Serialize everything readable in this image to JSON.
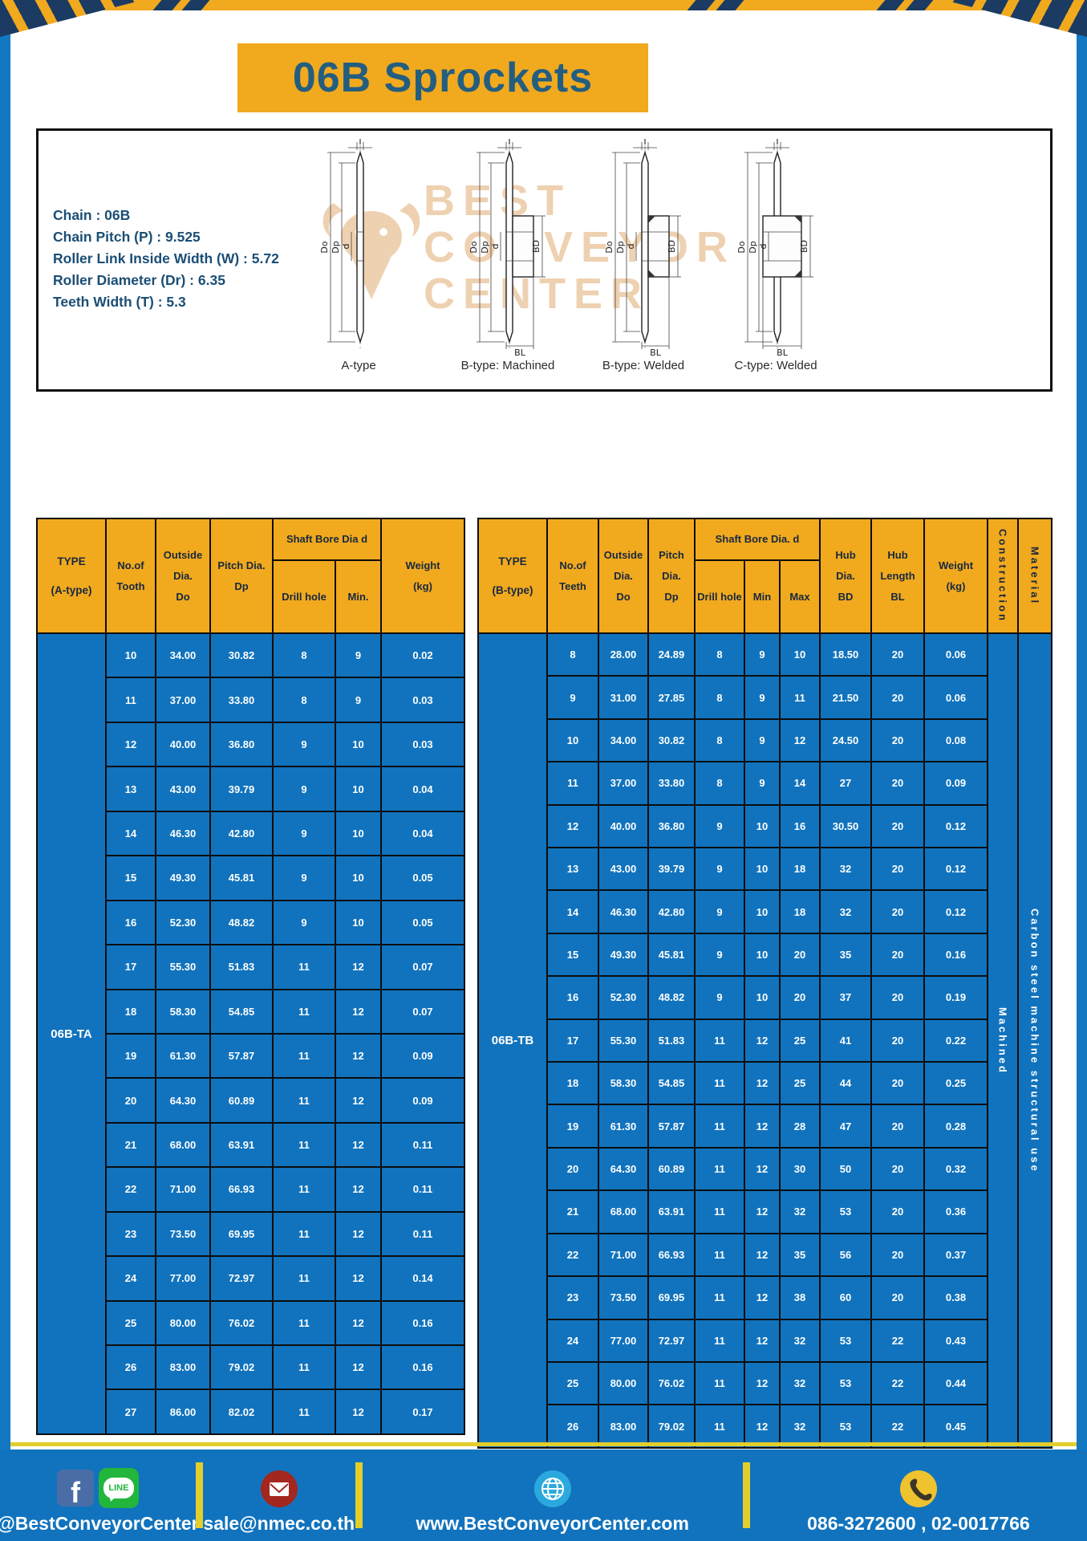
{
  "title": "06B Sprockets",
  "specs": [
    "Chain : 06B",
    "Chain Pitch (P) : 9.525",
    "Roller Link Inside Width (W) : 5.72",
    "Roller Diameter (Dr) : 6.35",
    "Teeth Width (T) : 5.3"
  ],
  "watermark_lines": [
    "BEST",
    "CONVEYOR",
    "CENTER"
  ],
  "diagram": {
    "types": [
      "A-type",
      "B-type: Machined",
      "B-type: Welded",
      "C-type: Welded"
    ],
    "dims": {
      "t": "T",
      "do": "Do",
      "dp": "Dp",
      "d": "d",
      "bd": "BD",
      "bl": "BL"
    }
  },
  "tableA": {
    "type_header": "TYPE\n(A-type)",
    "type_value": "06B-TA",
    "headers": {
      "tooth": "No.of\nTooth",
      "outside": "Outside\nDia.\nDo",
      "pitch": "Pitch Dia.\nDp",
      "shaft_group": "Shaft Bore Dia d",
      "drill": "Drill hole",
      "min": "Min.",
      "weight": "Weight\n(kg)"
    },
    "rows": [
      [
        "10",
        "34.00",
        "30.82",
        "8",
        "9",
        "0.02"
      ],
      [
        "11",
        "37.00",
        "33.80",
        "8",
        "9",
        "0.03"
      ],
      [
        "12",
        "40.00",
        "36.80",
        "9",
        "10",
        "0.03"
      ],
      [
        "13",
        "43.00",
        "39.79",
        "9",
        "10",
        "0.04"
      ],
      [
        "14",
        "46.30",
        "42.80",
        "9",
        "10",
        "0.04"
      ],
      [
        "15",
        "49.30",
        "45.81",
        "9",
        "10",
        "0.05"
      ],
      [
        "16",
        "52.30",
        "48.82",
        "9",
        "10",
        "0.05"
      ],
      [
        "17",
        "55.30",
        "51.83",
        "11",
        "12",
        "0.07"
      ],
      [
        "18",
        "58.30",
        "54.85",
        "11",
        "12",
        "0.07"
      ],
      [
        "19",
        "61.30",
        "57.87",
        "11",
        "12",
        "0.09"
      ],
      [
        "20",
        "64.30",
        "60.89",
        "11",
        "12",
        "0.09"
      ],
      [
        "21",
        "68.00",
        "63.91",
        "11",
        "12",
        "0.11"
      ],
      [
        "22",
        "71.00",
        "66.93",
        "11",
        "12",
        "0.11"
      ],
      [
        "23",
        "73.50",
        "69.95",
        "11",
        "12",
        "0.11"
      ],
      [
        "24",
        "77.00",
        "72.97",
        "11",
        "12",
        "0.14"
      ],
      [
        "25",
        "80.00",
        "76.02",
        "11",
        "12",
        "0.16"
      ],
      [
        "26",
        "83.00",
        "79.02",
        "11",
        "12",
        "0.16"
      ],
      [
        "27",
        "86.00",
        "82.02",
        "11",
        "12",
        "0.17"
      ]
    ]
  },
  "tableB": {
    "type_header": "TYPE\n(B-type)",
    "type_value": "06B-TB",
    "headers": {
      "teeth": "No.of\nTeeth",
      "outside": "Outside\nDia.\nDo",
      "pitch": "Pitch\nDia.\nDp",
      "shaft_group": "Shaft Bore Dia. d",
      "drill": "Drill hole",
      "min": "Min",
      "max": "Max",
      "hub_dia": "Hub\nDia.\nBD",
      "hub_len": "Hub\nLength\nBL",
      "weight": "Weight\n(kg)",
      "construction": "Construction",
      "material": "Material"
    },
    "construction_value": "Machined",
    "material_value": "Carbon steel machine structural use",
    "rows": [
      [
        "8",
        "28.00",
        "24.89",
        "8",
        "9",
        "10",
        "18.50",
        "20",
        "0.06"
      ],
      [
        "9",
        "31.00",
        "27.85",
        "8",
        "9",
        "11",
        "21.50",
        "20",
        "0.06"
      ],
      [
        "10",
        "34.00",
        "30.82",
        "8",
        "9",
        "12",
        "24.50",
        "20",
        "0.08"
      ],
      [
        "11",
        "37.00",
        "33.80",
        "8",
        "9",
        "14",
        "27",
        "20",
        "0.09"
      ],
      [
        "12",
        "40.00",
        "36.80",
        "9",
        "10",
        "16",
        "30.50",
        "20",
        "0.12"
      ],
      [
        "13",
        "43.00",
        "39.79",
        "9",
        "10",
        "18",
        "32",
        "20",
        "0.12"
      ],
      [
        "14",
        "46.30",
        "42.80",
        "9",
        "10",
        "18",
        "32",
        "20",
        "0.12"
      ],
      [
        "15",
        "49.30",
        "45.81",
        "9",
        "10",
        "20",
        "35",
        "20",
        "0.16"
      ],
      [
        "16",
        "52.30",
        "48.82",
        "9",
        "10",
        "20",
        "37",
        "20",
        "0.19"
      ],
      [
        "17",
        "55.30",
        "51.83",
        "11",
        "12",
        "25",
        "41",
        "20",
        "0.22"
      ],
      [
        "18",
        "58.30",
        "54.85",
        "11",
        "12",
        "25",
        "44",
        "20",
        "0.25"
      ],
      [
        "19",
        "61.30",
        "57.87",
        "11",
        "12",
        "28",
        "47",
        "20",
        "0.28"
      ],
      [
        "20",
        "64.30",
        "60.89",
        "11",
        "12",
        "30",
        "50",
        "20",
        "0.32"
      ],
      [
        "21",
        "68.00",
        "63.91",
        "11",
        "12",
        "32",
        "53",
        "20",
        "0.36"
      ],
      [
        "22",
        "71.00",
        "66.93",
        "11",
        "12",
        "35",
        "56",
        "20",
        "0.37"
      ],
      [
        "23",
        "73.50",
        "69.95",
        "11",
        "12",
        "38",
        "60",
        "20",
        "0.38"
      ],
      [
        "24",
        "77.00",
        "72.97",
        "11",
        "12",
        "32",
        "53",
        "22",
        "0.43"
      ],
      [
        "25",
        "80.00",
        "76.02",
        "11",
        "12",
        "32",
        "53",
        "22",
        "0.44"
      ],
      [
        "26",
        "83.00",
        "79.02",
        "11",
        "12",
        "32",
        "53",
        "22",
        "0.45"
      ]
    ]
  },
  "footer": {
    "facebook_f": "f",
    "line_badge": "LINE",
    "social": "@BestConveyorCenter",
    "email": "sale@nmec.co.th",
    "website": "www.BestConveyorCenter.com",
    "phone": "086-3272600 , 02-0017766"
  },
  "colors": {
    "accent_yellow": "#F1A91E",
    "table_blue": "#1173BD",
    "navy": "#1B3B63",
    "separator_yellow": "#E2CE2C"
  }
}
